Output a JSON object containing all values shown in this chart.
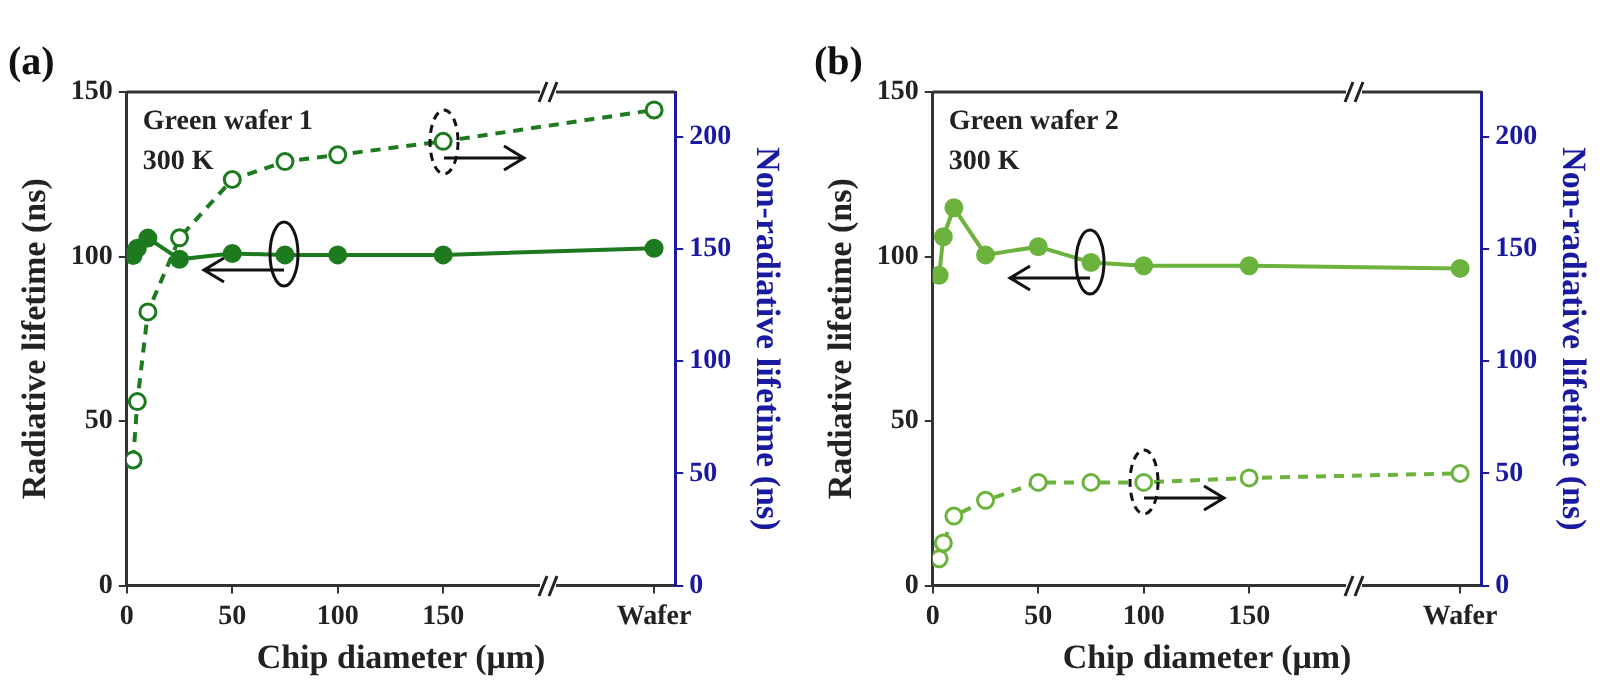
{
  "chart_data": [
    {
      "type": "line",
      "title": "(a)",
      "xlabel": "Chip diameter (μm)",
      "ylabel": "Radiative lifetime (ns)",
      "y2label": "Non-radiative lifetime (ns)",
      "annotations": [
        "Green wafer 1",
        "300 K"
      ],
      "x": [
        3,
        5,
        10,
        25,
        50,
        75,
        100,
        150,
        250
      ],
      "xlim": [
        0,
        260
      ],
      "xticks": [
        0,
        50,
        100,
        150,
        {
          "value": 250,
          "label": "Wafer"
        }
      ],
      "ylim": [
        0,
        150
      ],
      "yticks": [
        0,
        50,
        100,
        150
      ],
      "y2lim": [
        0,
        220
      ],
      "y2ticks": [
        0,
        50,
        100,
        150,
        200
      ],
      "grid": false,
      "legend": false,
      "marker": "circle",
      "series": [
        {
          "color": "#1e7a1e",
          "line_style": "solid",
          "values": [
            100.3,
            102.5,
            105.6,
            99.2,
            100.9,
            100.5,
            100.5,
            100.5,
            102.5
          ]
        },
        {
          "color": "#1e7a1e",
          "line_style": "dashed",
          "axis": "y2",
          "values": [
            56,
            82,
            122,
            155,
            181,
            189,
            192,
            198,
            212
          ]
        }
      ]
    },
    {
      "type": "line",
      "title": "(b)",
      "xlabel": "Chip diameter (μm)",
      "ylabel": "Radiative lifetime (ns)",
      "y2label": "Non-radiative lifetime (ns)",
      "annotations": [
        "Green wafer 2",
        "300 K"
      ],
      "x": [
        3,
        5,
        10,
        25,
        50,
        75,
        100,
        150,
        250
      ],
      "xlim": [
        0,
        260
      ],
      "xticks": [
        0,
        50,
        100,
        150,
        {
          "value": 250,
          "label": "Wafer"
        }
      ],
      "ylim": [
        0,
        150
      ],
      "yticks": [
        0,
        50,
        100,
        150
      ],
      "y2lim": [
        0,
        220
      ],
      "y2ticks": [
        0,
        50,
        100,
        150,
        200
      ],
      "grid": false,
      "legend": false,
      "marker": "circle",
      "series": [
        {
          "color": "#6cb33e",
          "line_style": "solid",
          "values": [
            94.3,
            106,
            114.8,
            100.5,
            103,
            98.2,
            97.2,
            97.2,
            96.4
          ]
        },
        {
          "color": "#6cb33e",
          "line_style": "dashed",
          "axis": "y2",
          "values": [
            12,
            19,
            31,
            38,
            46,
            46,
            46,
            48,
            50
          ]
        }
      ]
    }
  ]
}
